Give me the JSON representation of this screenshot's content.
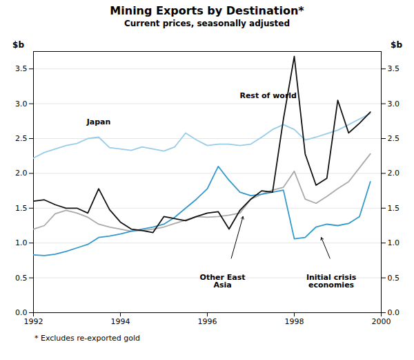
{
  "chart_data": {
    "type": "line",
    "title": "Mining Exports by Destination*",
    "subtitle": "Current prices, seasonally adjusted",
    "footnote": "* Excludes re-exported gold",
    "ylabel": "$b",
    "y2label": "$b",
    "xlim": [
      1992,
      2000
    ],
    "xticks": [
      1992,
      1994,
      1996,
      1998,
      2000
    ],
    "ylim": [
      0.0,
      3.75
    ],
    "yticks": [
      {
        "value": 0.0,
        "label": "0.0"
      },
      {
        "value": 0.5,
        "label": "0.5"
      },
      {
        "value": 1.0,
        "label": "1.0"
      },
      {
        "value": 1.5,
        "label": "1.5"
      },
      {
        "value": 2.0,
        "label": "2.0"
      },
      {
        "value": 2.5,
        "label": "2.5"
      },
      {
        "value": 3.0,
        "label": "3.0"
      },
      {
        "value": 3.5,
        "label": "3.5"
      }
    ],
    "y2lim": [
      0.0,
      3.75
    ],
    "y2ticks": [
      {
        "value": 0.0,
        "label": "0.0"
      },
      {
        "value": 0.5,
        "label": "0.5"
      },
      {
        "value": 1.0,
        "label": "1.0"
      },
      {
        "value": 1.5,
        "label": "1.5"
      },
      {
        "value": 2.0,
        "label": "2.0"
      },
      {
        "value": 2.5,
        "label": "2.5"
      },
      {
        "value": 3.0,
        "label": "3.0"
      },
      {
        "value": 3.5,
        "label": "3.5"
      }
    ],
    "grid": true,
    "x": [
      1992.0,
      1992.25,
      1992.5,
      1992.75,
      1993.0,
      1993.25,
      1993.5,
      1993.75,
      1994.0,
      1994.25,
      1994.5,
      1994.75,
      1995.0,
      1995.25,
      1995.5,
      1995.75,
      1996.0,
      1996.25,
      1996.5,
      1996.75,
      1997.0,
      1997.25,
      1997.5,
      1997.75,
      1998.0,
      1998.25,
      1998.5,
      1998.75,
      1999.0,
      1999.25,
      1999.5,
      1999.75
    ],
    "series": [
      {
        "color": "#99cce8",
        "values": [
          2.22,
          2.3,
          2.35,
          2.4,
          2.43,
          2.5,
          2.52,
          2.37,
          2.35,
          2.33,
          2.38,
          2.35,
          2.32,
          2.38,
          2.58,
          2.48,
          2.4,
          2.42,
          2.42,
          2.4,
          2.42,
          2.52,
          2.63,
          2.7,
          2.63,
          2.48,
          2.52,
          2.57,
          2.62,
          2.7,
          2.78,
          2.86
        ]
      },
      {
        "color": "#aaaaaa",
        "values": [
          1.2,
          1.25,
          1.42,
          1.47,
          1.43,
          1.37,
          1.27,
          1.23,
          1.2,
          1.17,
          1.18,
          1.2,
          1.23,
          1.28,
          1.33,
          1.38,
          1.37,
          1.38,
          1.4,
          1.43,
          1.63,
          1.7,
          1.76,
          1.8,
          2.03,
          1.63,
          1.57,
          1.67,
          1.78,
          1.88,
          2.08,
          2.28
        ]
      },
      {
        "color": "#3399cc",
        "values": [
          0.83,
          0.82,
          0.84,
          0.88,
          0.93,
          0.98,
          1.08,
          1.1,
          1.13,
          1.17,
          1.2,
          1.23,
          1.27,
          1.37,
          1.5,
          1.63,
          1.78,
          2.1,
          1.9,
          1.73,
          1.68,
          1.7,
          1.73,
          1.76,
          1.06,
          1.08,
          1.23,
          1.27,
          1.25,
          1.28,
          1.38,
          1.88
        ]
      },
      {
        "color": "#111111",
        "values": [
          1.6,
          1.62,
          1.55,
          1.5,
          1.5,
          1.43,
          1.78,
          1.48,
          1.3,
          1.2,
          1.18,
          1.15,
          1.38,
          1.35,
          1.32,
          1.38,
          1.43,
          1.45,
          1.2,
          1.47,
          1.63,
          1.75,
          1.73,
          2.78,
          3.68,
          2.28,
          1.83,
          1.93,
          3.05,
          2.58,
          2.72,
          2.88
        ]
      }
    ],
    "annotations": [
      {
        "text": "Rest of world",
        "x": 1997.4,
        "y": 3.08
      },
      {
        "text": "Japan",
        "x": 1993.5,
        "y": 2.7
      },
      {
        "text": "Other East\nAsia",
        "x": 1996.35,
        "y": 0.55,
        "arrow": {
          "x1": 1996.55,
          "y1": 0.78,
          "x2": 1996.82,
          "y2": 1.38
        }
      },
      {
        "text": "Initial crisis\neconomies",
        "x": 1998.85,
        "y": 0.55,
        "arrow": {
          "x1": 1998.82,
          "y1": 0.78,
          "x2": 1998.62,
          "y2": 1.08
        }
      }
    ]
  }
}
